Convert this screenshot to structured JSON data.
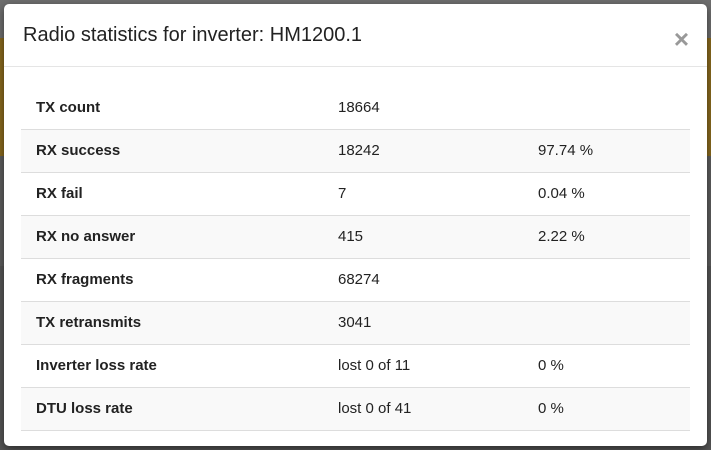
{
  "modal": {
    "title": "Radio statistics for inverter: HM1200.1",
    "close_glyph": "×"
  },
  "stats": [
    {
      "label": "TX count",
      "value": "18664",
      "extra": ""
    },
    {
      "label": "RX success",
      "value": "18242",
      "extra": "97.74 %"
    },
    {
      "label": "RX fail",
      "value": "7",
      "extra": "0.04 %"
    },
    {
      "label": "RX no answer",
      "value": "415",
      "extra": "2.22 %"
    },
    {
      "label": "RX fragments",
      "value": "68274",
      "extra": ""
    },
    {
      "label": "TX retransmits",
      "value": "3041",
      "extra": ""
    },
    {
      "label": "Inverter loss rate",
      "value": "lost 0 of 11",
      "extra": "0 %"
    },
    {
      "label": "DTU loss rate",
      "value": "lost 0 of 41",
      "extra": "0 %"
    }
  ]
}
